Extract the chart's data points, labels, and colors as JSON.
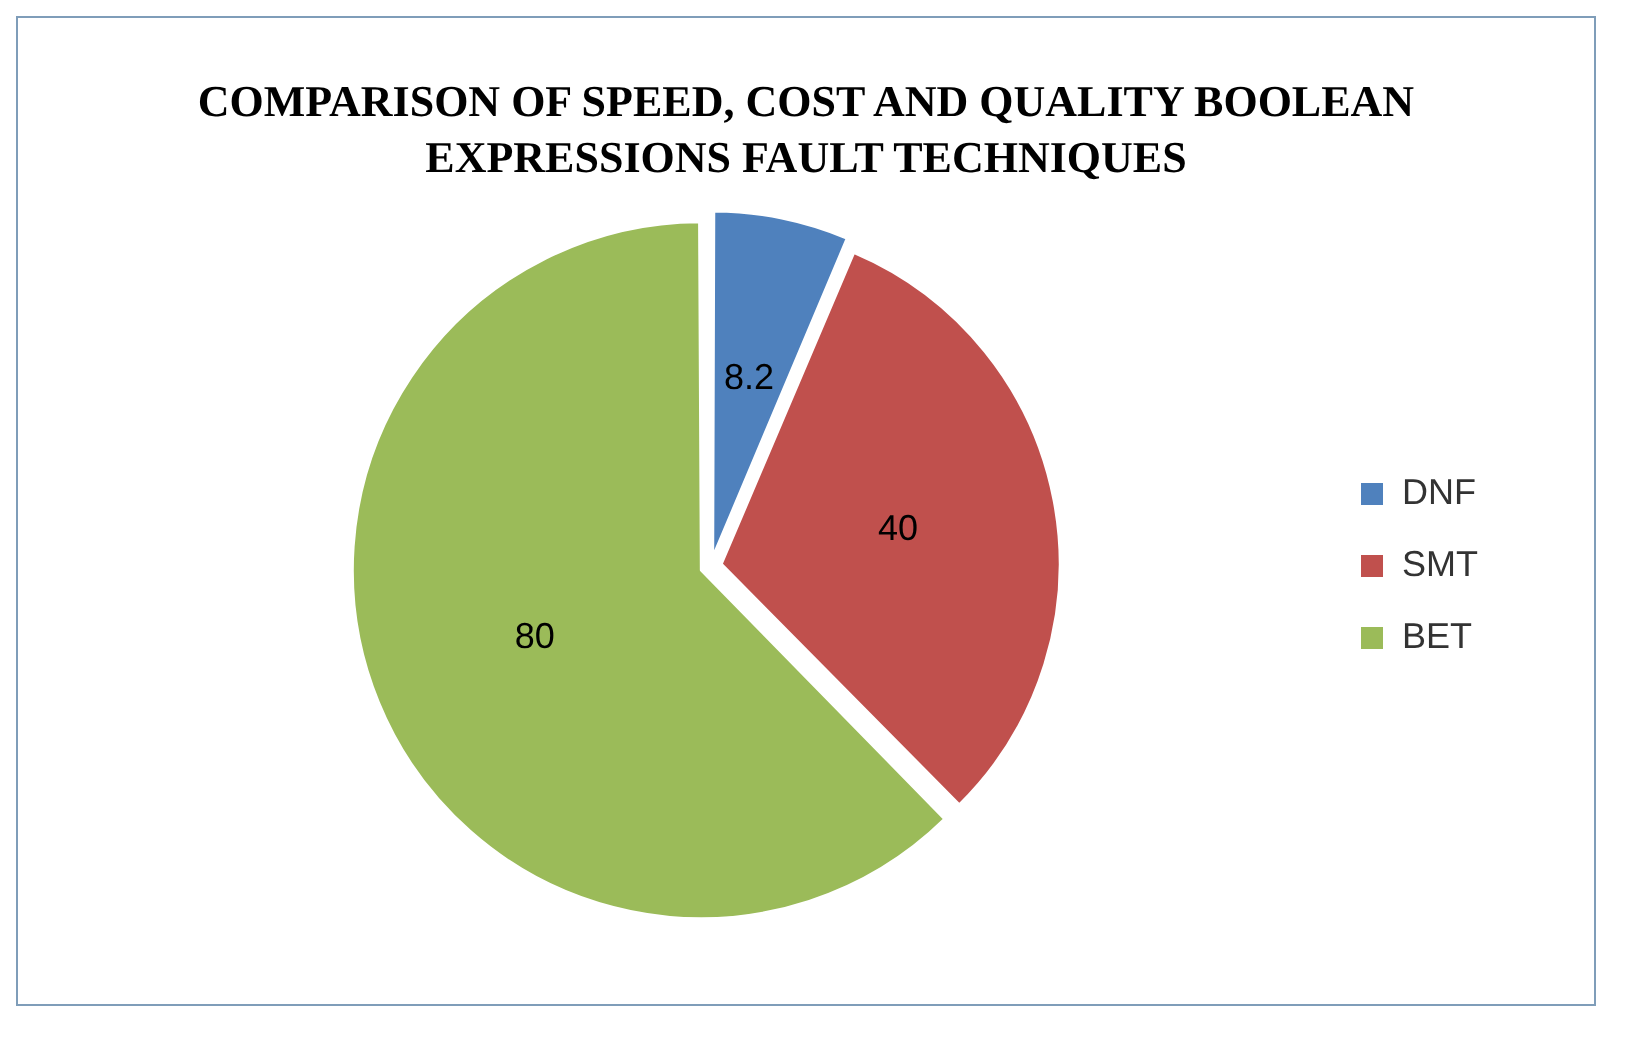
{
  "chart_data": {
    "type": "pie",
    "title": "COMPARISON OF SPEED, COST AND QUALITY BOOLEAN EXPRESSIONS FAULT TECHNIQUES",
    "categories": [
      "DNF",
      "SMT",
      "BET"
    ],
    "values": [
      8.2,
      40,
      80
    ],
    "colors": [
      "#4f81bd",
      "#c0504d",
      "#9bbb59"
    ],
    "data_labels": true,
    "legend": "right"
  }
}
